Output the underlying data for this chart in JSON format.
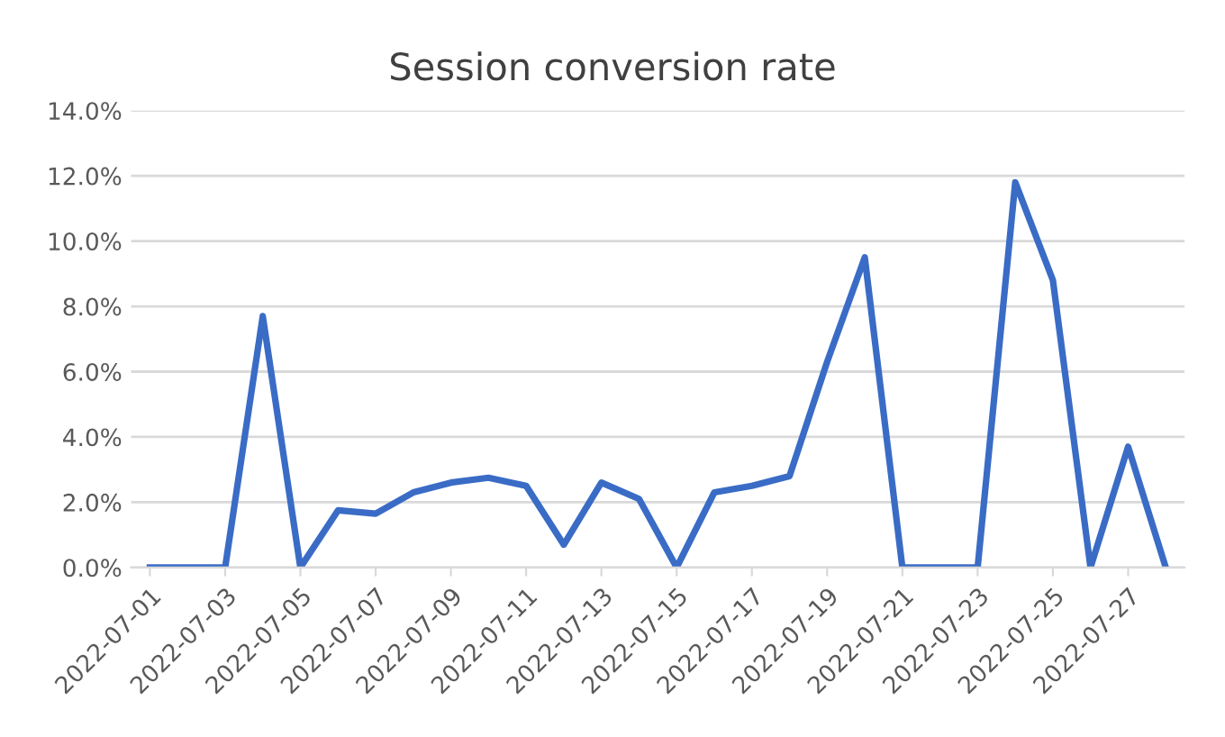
{
  "chart_data": {
    "type": "line",
    "title": "Session conversion rate",
    "x": [
      "2022-07-01",
      "2022-07-02",
      "2022-07-03",
      "2022-07-04",
      "2022-07-05",
      "2022-07-06",
      "2022-07-07",
      "2022-07-08",
      "2022-07-09",
      "2022-07-10",
      "2022-07-11",
      "2022-07-12",
      "2022-07-13",
      "2022-07-14",
      "2022-07-15",
      "2022-07-16",
      "2022-07-17",
      "2022-07-18",
      "2022-07-19",
      "2022-07-20",
      "2022-07-21",
      "2022-07-22",
      "2022-07-23",
      "2022-07-24",
      "2022-07-25",
      "2022-07-26",
      "2022-07-27",
      "2022-07-28"
    ],
    "series": [
      {
        "color": "#3a6cc6",
        "values": [
          0,
          0,
          0,
          7.7,
          0,
          1.75,
          1.65,
          2.3,
          2.6,
          2.75,
          2.5,
          0.7,
          2.6,
          2.1,
          0,
          2.3,
          2.5,
          2.8,
          6.3,
          9.5,
          0,
          0,
          0,
          11.8,
          8.8,
          0,
          3.7,
          0
        ]
      }
    ],
    "xlim": [
      "2022-06-30T12:00",
      "2022-07-28T12:00"
    ],
    "xticks": [
      "2022-07-01",
      "2022-07-03",
      "2022-07-05",
      "2022-07-07",
      "2022-07-09",
      "2022-07-11",
      "2022-07-13",
      "2022-07-15",
      "2022-07-17",
      "2022-07-19",
      "2022-07-21",
      "2022-07-23",
      "2022-07-25",
      "2022-07-27"
    ],
    "ylim": [
      0,
      14
    ],
    "yticks": [
      {
        "value": 0,
        "label": "0.0%"
      },
      {
        "value": 2,
        "label": "2.0%"
      },
      {
        "value": 4,
        "label": "4.0%"
      },
      {
        "value": 6,
        "label": "6.0%"
      },
      {
        "value": 8,
        "label": "8.0%"
      },
      {
        "value": 10,
        "label": "10.0%"
      },
      {
        "value": 12,
        "label": "12.0%"
      },
      {
        "value": 14,
        "label": "14.0%"
      }
    ],
    "grid": "y",
    "marker": "none",
    "line_style": "solid"
  }
}
